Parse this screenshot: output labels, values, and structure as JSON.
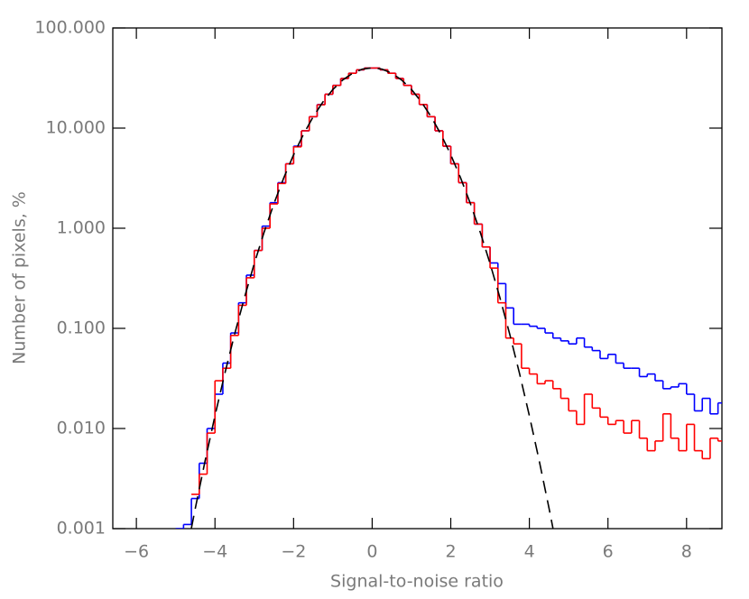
{
  "chart_data": {
    "type": "histogram",
    "xlabel": "Signal-to-noise ratio",
    "ylabel": "Number of pixels, %",
    "log_y": true,
    "xlim": [
      -6.6,
      8.9
    ],
    "ylim": [
      0.001,
      100
    ],
    "xticks": [
      {
        "value": -6,
        "label": "−6"
      },
      {
        "value": -4,
        "label": "−4"
      },
      {
        "value": -2,
        "label": "−2"
      },
      0,
      2,
      4,
      6,
      8
    ],
    "yticks": [
      {
        "value": 0.001,
        "label": "0.001"
      },
      {
        "value": 0.01,
        "label": "0.010"
      },
      {
        "value": 0.1,
        "label": "0.100"
      },
      {
        "value": 1,
        "label": "1.000"
      },
      {
        "value": 10,
        "label": "10.000"
      },
      {
        "value": 100,
        "label": "100.000"
      }
    ],
    "bins": [
      -5.0,
      -4.8,
      -4.6,
      -4.4,
      -4.2,
      -4.0,
      -3.8,
      -3.6,
      -3.4,
      -3.2,
      -3.0,
      -2.8,
      -2.6,
      -2.4,
      -2.2,
      -2.0,
      -1.8,
      -1.6,
      -1.4,
      -1.2,
      -1.0,
      -0.8,
      -0.6,
      -0.4,
      -0.2,
      0.0,
      0.2,
      0.4,
      0.6,
      0.8,
      1.0,
      1.2,
      1.4,
      1.6,
      1.8,
      2.0,
      2.2,
      2.4,
      2.6,
      2.8,
      3.0,
      3.2,
      3.4,
      3.6,
      3.8,
      4.0,
      4.2,
      4.4,
      4.6,
      4.8,
      5.0,
      5.2,
      5.4,
      5.6,
      5.8,
      6.0,
      6.2,
      6.4,
      6.6,
      6.8,
      7.0,
      7.2,
      7.4,
      7.6,
      7.8,
      8.0,
      8.2,
      8.4,
      8.6,
      8.8,
      9.0
    ],
    "series": [
      {
        "color": "#0000ff",
        "values": [
          0.001,
          0.0011,
          0.002,
          0.0045,
          0.01,
          0.022,
          0.045,
          0.09,
          0.18,
          0.34,
          0.6,
          1.05,
          1.8,
          2.85,
          4.4,
          6.6,
          9.4,
          13,
          17.2,
          21.8,
          26.7,
          31.3,
          35.3,
          38.2,
          39.8,
          39.8,
          38.2,
          35.3,
          31.3,
          26.7,
          21.8,
          17.2,
          13,
          9.4,
          6.6,
          4.4,
          2.85,
          1.8,
          1.1,
          0.65,
          0.45,
          0.28,
          0.16,
          0.11,
          0.11,
          0.105,
          0.1,
          0.09,
          0.08,
          0.075,
          0.07,
          0.08,
          0.065,
          0.06,
          0.05,
          0.055,
          0.045,
          0.04,
          0.04,
          0.033,
          0.035,
          0.03,
          0.025,
          0.026,
          0.028,
          0.022,
          0.015,
          0.02,
          0.014,
          0.018
        ]
      },
      {
        "color": "#ff0000",
        "values": [
          null,
          null,
          0.0022,
          0.0035,
          0.009,
          0.03,
          0.04,
          0.085,
          0.17,
          0.32,
          0.6,
          1.0,
          1.75,
          2.8,
          4.4,
          6.5,
          9.4,
          13,
          17.1,
          21.8,
          26.7,
          31.3,
          35.3,
          38.2,
          39.8,
          39.8,
          38.2,
          35.3,
          31.3,
          26.7,
          21.8,
          17.2,
          13,
          9.4,
          6.6,
          4.4,
          2.85,
          1.8,
          1.1,
          0.65,
          0.4,
          0.18,
          0.08,
          0.07,
          0.04,
          0.035,
          0.028,
          0.03,
          0.025,
          0.02,
          0.015,
          0.011,
          0.022,
          0.016,
          0.013,
          0.011,
          0.012,
          0.009,
          0.012,
          0.008,
          0.006,
          0.0075,
          0.014,
          0.008,
          0.006,
          0.011,
          0.006,
          0.005,
          0.008,
          0.0075
        ]
      }
    ],
    "fit": {
      "color": "#000000",
      "dashed": true,
      "x": [
        -4.6,
        -4.5,
        -4.25,
        -4,
        -3.75,
        -3.5,
        -3.25,
        -3,
        -2.75,
        -2.5,
        -2.25,
        -2,
        -1.75,
        -1.5,
        -1.25,
        -1,
        -0.75,
        -0.5,
        -0.25,
        0,
        0.25,
        0.5,
        0.75,
        1,
        1.25,
        1.5,
        1.75,
        2,
        2.25,
        2.5,
        2.75,
        3,
        3.25,
        3.5,
        3.75,
        4,
        4.25,
        4.5,
        4.6
      ],
      "values": [
        0.00101,
        0.0016,
        0.00478,
        0.0134,
        0.0354,
        0.0876,
        0.203,
        0.444,
        0.912,
        1.76,
        3.18,
        5.41,
        8.65,
        13.0,
        18.3,
        24.3,
        30.2,
        35.3,
        38.8,
        40,
        38.8,
        35.3,
        30.2,
        24.3,
        18.3,
        13.0,
        8.65,
        5.41,
        3.18,
        1.76,
        0.912,
        0.444,
        0.203,
        0.0876,
        0.0354,
        0.0134,
        0.00478,
        0.0016,
        0.00101
      ]
    }
  }
}
